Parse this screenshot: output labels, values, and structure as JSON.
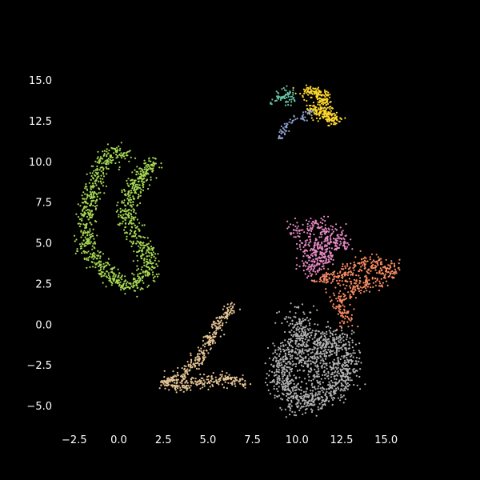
{
  "chart_data": {
    "type": "scatter",
    "title": "",
    "xlabel": "",
    "ylabel": "",
    "xlim": [
      -3.3,
      16.9
    ],
    "ylim": [
      -6.6,
      17.0
    ],
    "grid": false,
    "legend": "none",
    "background": "#000000",
    "xticks": [
      -2.5,
      0.0,
      2.5,
      5.0,
      7.5,
      10.0,
      12.5,
      15.0
    ],
    "xtick_labels": [
      "−2.5",
      "0.0",
      "2.5",
      "5.0",
      "7.5",
      "10.0",
      "12.5",
      "15.0"
    ],
    "yticks": [
      -5.0,
      -2.5,
      0.0,
      2.5,
      5.0,
      7.5,
      10.0,
      12.5,
      15.0
    ],
    "ytick_labels": [
      "−5.0",
      "−2.5",
      "0.0",
      "2.5",
      "5.0",
      "7.5",
      "10.0",
      "12.5",
      "15.0"
    ],
    "series": [
      {
        "color": "#a6d854",
        "shape": "crescent",
        "points": 1100,
        "spine": [
          [
            0.4,
            10.3
          ],
          [
            0.2,
            10.6
          ],
          [
            -0.5,
            10.5
          ],
          [
            -1.2,
            9.5
          ],
          [
            -1.5,
            8.0
          ],
          [
            -1.9,
            6.5
          ],
          [
            -1.8,
            5.0
          ],
          [
            -1.3,
            3.8
          ],
          [
            -0.3,
            2.8
          ],
          [
            0.8,
            2.3
          ],
          [
            1.5,
            3.0
          ],
          [
            1.8,
            3.8
          ],
          [
            1.3,
            5.0
          ],
          [
            0.4,
            6.5
          ],
          [
            0.6,
            8.0
          ],
          [
            1.3,
            9.2
          ],
          [
            2.0,
            10.0
          ]
        ],
        "spread": 0.45
      },
      {
        "color": "#66c2a5",
        "shape": "blob",
        "points": 70,
        "spine": [
          [
            8.6,
            13.6
          ],
          [
            9.2,
            14.0
          ],
          [
            9.5,
            14.4
          ],
          [
            9.9,
            14.0
          ],
          [
            9.4,
            13.5
          ]
        ],
        "spread": 0.25
      },
      {
        "color": "#8da0cb",
        "shape": "arc",
        "points": 80,
        "spine": [
          [
            9.0,
            11.4
          ],
          [
            9.3,
            12.1
          ],
          [
            9.9,
            12.6
          ],
          [
            10.4,
            12.8
          ],
          [
            10.8,
            13.2
          ]
        ],
        "spread": 0.18
      },
      {
        "color": "#ffd92f",
        "shape": "blob",
        "points": 300,
        "spine": [
          [
            10.3,
            14.2
          ],
          [
            10.9,
            14.4
          ],
          [
            11.5,
            14.0
          ],
          [
            11.7,
            13.2
          ],
          [
            12.2,
            12.5
          ],
          [
            11.4,
            12.9
          ],
          [
            10.7,
            13.5
          ]
        ],
        "spread": 0.35
      },
      {
        "color": "#e78ac3",
        "shape": "blob",
        "points": 420,
        "spine": [
          [
            9.8,
            5.5
          ],
          [
            10.4,
            6.1
          ],
          [
            11.2,
            6.0
          ],
          [
            12.0,
            5.6
          ],
          [
            12.7,
            5.0
          ],
          [
            11.4,
            5.0
          ],
          [
            10.7,
            4.4
          ],
          [
            10.7,
            3.2
          ],
          [
            11.8,
            4.1
          ],
          [
            10.3,
            5.0
          ]
        ],
        "spread": 0.5
      },
      {
        "color": "#fc8d62",
        "shape": "blob",
        "points": 450,
        "spine": [
          [
            11.2,
            2.7
          ],
          [
            12.6,
            3.1
          ],
          [
            13.4,
            3.5
          ],
          [
            14.5,
            3.9
          ],
          [
            15.3,
            3.4
          ],
          [
            14.6,
            2.7
          ],
          [
            13.2,
            2.4
          ],
          [
            12.4,
            1.6
          ],
          [
            12.6,
            0.6
          ],
          [
            12.9,
            0.0
          ]
        ],
        "spread": 0.45
      },
      {
        "color": "#b3b3b3",
        "shape": "blob",
        "points": 1300,
        "spine": [
          [
            10.0,
            0.6
          ],
          [
            10.3,
            -0.8
          ],
          [
            9.6,
            -1.8
          ],
          [
            9.0,
            -2.8
          ],
          [
            9.2,
            -3.9
          ],
          [
            10.0,
            -4.6
          ],
          [
            11.0,
            -4.6
          ],
          [
            11.9,
            -4.2
          ],
          [
            12.6,
            -3.5
          ],
          [
            12.8,
            -2.2
          ],
          [
            12.3,
            -1.0
          ],
          [
            11.3,
            -0.9
          ],
          [
            10.8,
            -2.4
          ],
          [
            11.6,
            -3.0
          ]
        ],
        "spread": 0.75
      },
      {
        "color": "#e5c494",
        "shape": "tail",
        "points": 520,
        "spine": [
          [
            6.4,
            1.2
          ],
          [
            5.7,
            0.2
          ],
          [
            5.2,
            -0.8
          ],
          [
            4.8,
            -1.5
          ],
          [
            4.3,
            -2.4
          ],
          [
            3.7,
            -3.0
          ],
          [
            3.0,
            -3.4
          ],
          [
            2.5,
            -3.5
          ],
          [
            3.3,
            -4.0
          ],
          [
            4.2,
            -3.6
          ],
          [
            5.4,
            -3.4
          ],
          [
            6.5,
            -3.4
          ],
          [
            7.2,
            -3.6
          ]
        ],
        "spread": 0.3
      }
    ]
  }
}
